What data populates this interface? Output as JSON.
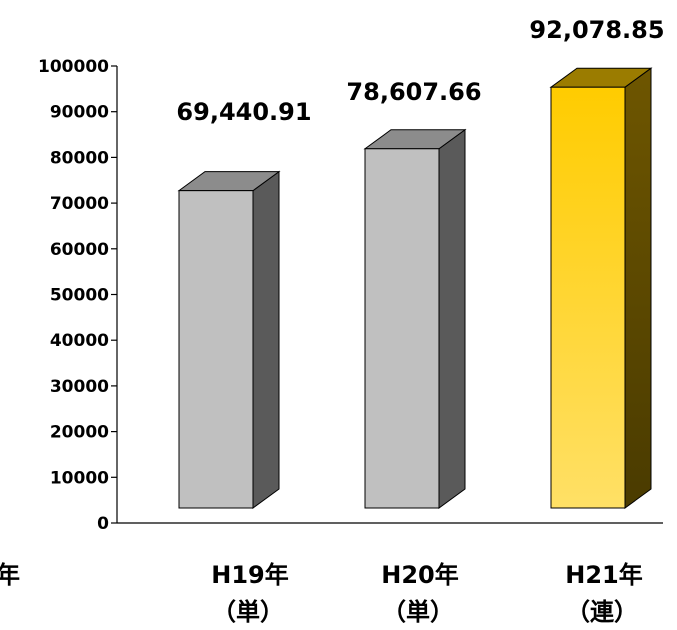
{
  "chart_data": {
    "type": "bar",
    "title": "",
    "xlabel": "",
    "ylabel": "",
    "ylim": [
      0,
      100000
    ],
    "yticks": [
      "0",
      "10000",
      "20000",
      "30000",
      "40000",
      "50000",
      "60000",
      "70000",
      "80000",
      "90000",
      "100000"
    ],
    "categories": [
      {
        "line1": "H19年",
        "line2": "（単）"
      },
      {
        "line1": "H20年",
        "line2": "（単）"
      },
      {
        "line1": "H21年",
        "line2": "（連）"
      }
    ],
    "partial_category": {
      "line1": "年",
      "line2": "）"
    },
    "values": [
      69440.91,
      78607.66,
      92078.85
    ],
    "data_labels": [
      "69,440.91",
      "78,607.66",
      "92,078.85"
    ],
    "colors": {
      "gray_front": "#c0c0c0",
      "gray_top": "#8c8c8c",
      "gray_side": "#5a5a5a",
      "gold_front_top": "#ffcc00",
      "gold_front_bottom": "#ffe066",
      "gold_top": "#9b7c00",
      "gold_side": "#6e5600",
      "highlight_index": 2
    },
    "grid": false
  }
}
